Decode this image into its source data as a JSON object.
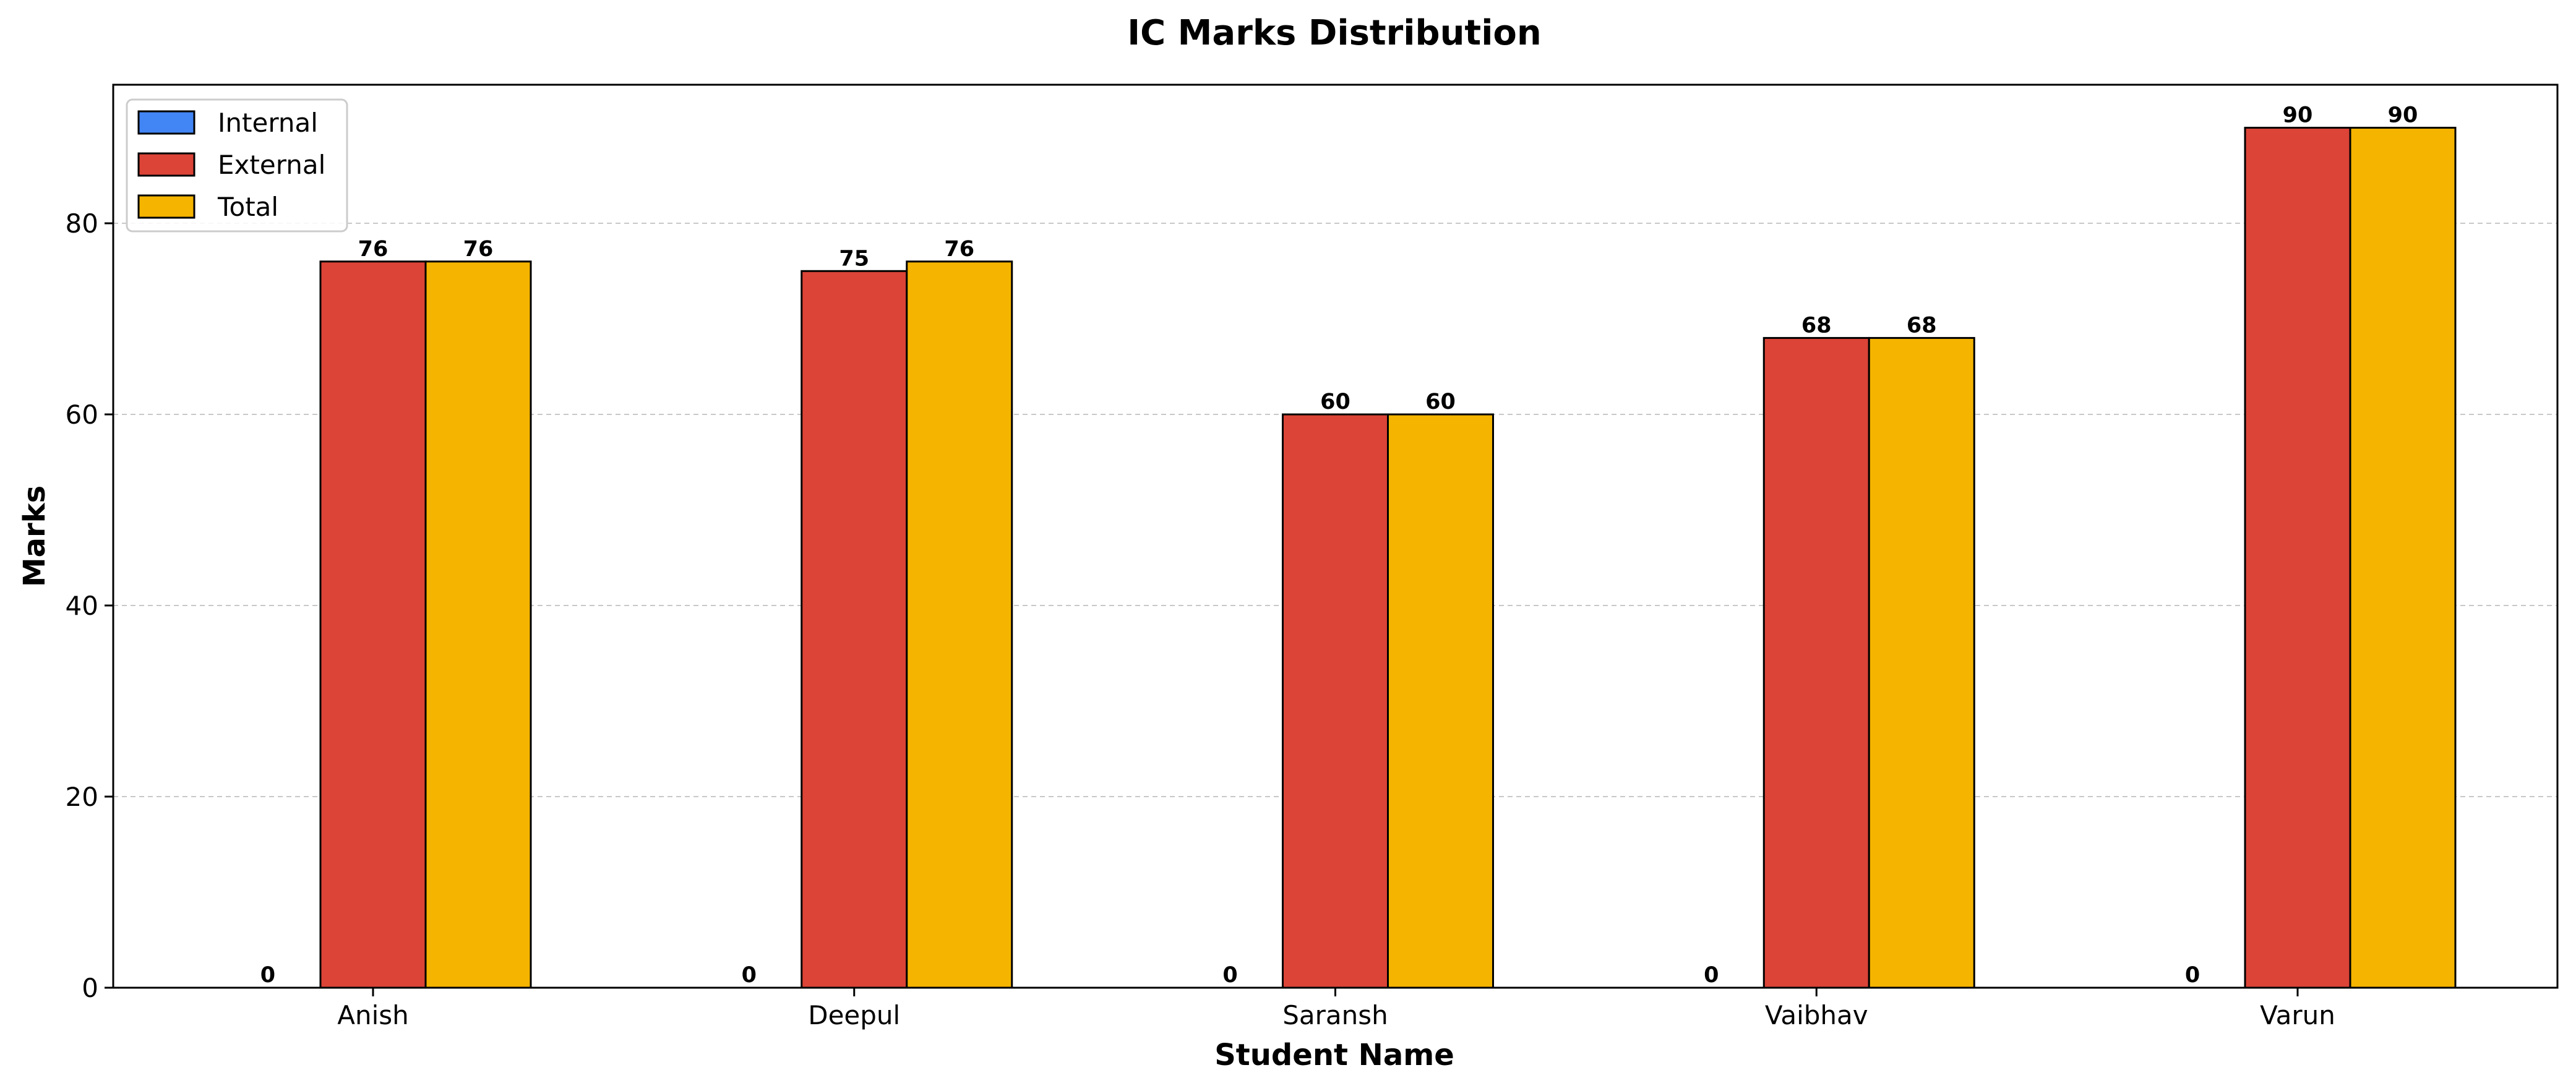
{
  "chart_data": {
    "type": "bar",
    "title": "IC Marks Distribution",
    "xlabel": "Student Name",
    "ylabel": "Marks",
    "categories": [
      "Anish",
      "Deepul",
      "Saransh",
      "Vaibhav",
      "Varun"
    ],
    "series": [
      {
        "name": "Internal",
        "values": [
          0,
          0,
          0,
          0,
          0
        ],
        "color": "#4285f4"
      },
      {
        "name": "External",
        "values": [
          76,
          75,
          60,
          68,
          90
        ],
        "color": "#db4437"
      },
      {
        "name": "Total",
        "values": [
          76,
          76,
          60,
          68,
          90
        ],
        "color": "#f4b400"
      }
    ],
    "ylim": [
      0,
      94.5
    ],
    "yticks": [
      0,
      20,
      40,
      60,
      80
    ],
    "grid": "y-dashed",
    "legend_position": "top-left"
  }
}
